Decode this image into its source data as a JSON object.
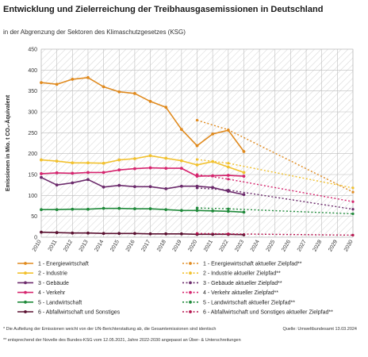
{
  "header": {
    "title": "Entwicklung und Zielerreichung der Treibhausgasemissionen in Deutschland",
    "subtitle": "in der Abgrenzung der Sektoren des Klimaschutzgesetzes (KSG)"
  },
  "footnotes": {
    "note1": "* Die Aufteilung der Emissionen weicht von der UN-Berichterstattung ab, die Gesamtemissionen sind identisch",
    "note2": "** entsprechend der Novelle des Bundes-KSG vom 12.05.2021, Jahre 2022-2030 angepasst an Über- & Unterschreitungen",
    "source": "Quelle: Umweltbundesamt 13.03.2024"
  },
  "chart_data": {
    "type": "line",
    "ylabel": "Emissionen in Mio. t CO₂-Äquivalent",
    "ylim": [
      0,
      450
    ],
    "yticks": [
      0,
      50,
      100,
      150,
      200,
      250,
      300,
      350,
      400,
      450
    ],
    "x": [
      2010,
      2011,
      2012,
      2013,
      2014,
      2015,
      2016,
      2017,
      2018,
      2019,
      2020,
      2021,
      2022,
      2023,
      2024,
      2025,
      2026,
      2027,
      2028,
      2029,
      2030
    ],
    "grid": true,
    "series": [
      {
        "name": "1 - Energiewirtschaft",
        "color": "#e08a1e",
        "style": "solid",
        "marker": true,
        "x": [
          2010,
          2011,
          2012,
          2013,
          2014,
          2015,
          2016,
          2017,
          2018,
          2019,
          2020,
          2021,
          2022,
          2023
        ],
        "values": [
          370,
          366,
          378,
          382,
          360,
          348,
          344,
          325,
          311,
          258,
          219,
          247,
          256,
          205
        ]
      },
      {
        "name": "2 - Industrie",
        "color": "#f2c12e",
        "style": "solid",
        "marker": true,
        "x": [
          2010,
          2011,
          2012,
          2013,
          2014,
          2015,
          2016,
          2017,
          2018,
          2019,
          2020,
          2021,
          2022,
          2023
        ],
        "values": [
          185,
          182,
          178,
          178,
          177,
          185,
          188,
          195,
          189,
          183,
          173,
          181,
          168,
          155
        ]
      },
      {
        "name": "3 - Gebäude",
        "color": "#6b2a6b",
        "style": "solid",
        "marker": true,
        "x": [
          2010,
          2011,
          2012,
          2013,
          2014,
          2015,
          2016,
          2017,
          2018,
          2019,
          2020,
          2021,
          2022,
          2023
        ],
        "values": [
          143,
          125,
          130,
          138,
          120,
          124,
          121,
          121,
          116,
          122,
          122,
          119,
          110,
          102
        ]
      },
      {
        "name": "4 - Verkehr",
        "color": "#d6246e",
        "style": "solid",
        "marker": true,
        "x": [
          2010,
          2011,
          2012,
          2013,
          2014,
          2015,
          2016,
          2017,
          2018,
          2019,
          2020,
          2021,
          2022,
          2023
        ],
        "values": [
          152,
          154,
          153,
          155,
          155,
          161,
          164,
          166,
          165,
          165,
          146,
          147,
          148,
          146
        ]
      },
      {
        "name": "5 - Landwirtschaft",
        "color": "#1f8a3a",
        "style": "solid",
        "marker": true,
        "x": [
          2010,
          2011,
          2012,
          2013,
          2014,
          2015,
          2016,
          2017,
          2018,
          2019,
          2020,
          2021,
          2022,
          2023
        ],
        "values": [
          66,
          66,
          67,
          67,
          69,
          69,
          68,
          68,
          66,
          64,
          64,
          63,
          62,
          60
        ]
      },
      {
        "name": "6 - Abfallwirtschaft und Sonstiges",
        "color": "#5a1030",
        "style": "solid",
        "marker": true,
        "x": [
          2010,
          2011,
          2012,
          2013,
          2014,
          2015,
          2016,
          2017,
          2018,
          2019,
          2020,
          2021,
          2022,
          2023
        ],
        "values": [
          12,
          11,
          10,
          10,
          9,
          9,
          9,
          8,
          8,
          8,
          7,
          7,
          7,
          6
        ]
      },
      {
        "name": "1 - Energiewirtschaft aktueller Zielpfad**",
        "color": "#e08a1e",
        "style": "dotted",
        "marker": true,
        "x": [
          2020,
          2022,
          2030
        ],
        "values": [
          280,
          257,
          108
        ]
      },
      {
        "name": "2 - Industrie aktueller Zielpfad**",
        "color": "#f2c12e",
        "style": "dotted",
        "marker": true,
        "x": [
          2020,
          2022,
          2030
        ],
        "values": [
          186,
          177,
          118
        ]
      },
      {
        "name": "3 - Gebäude aktueller Zielpfad**",
        "color": "#6b2a6b",
        "style": "dotted",
        "marker": true,
        "x": [
          2020,
          2022,
          2030
        ],
        "values": [
          118,
          113,
          67
        ]
      },
      {
        "name": "4 - Verkehr aktueller Zielpfad**",
        "color": "#d6246e",
        "style": "dotted",
        "marker": true,
        "x": [
          2020,
          2022,
          2030
        ],
        "values": [
          150,
          139,
          85
        ]
      },
      {
        "name": "5 - Landwirtschaft aktueller Zielpfad**",
        "color": "#1f8a3a",
        "style": "dotted",
        "marker": true,
        "x": [
          2020,
          2022,
          2030
        ],
        "values": [
          70,
          68,
          56
        ]
      },
      {
        "name": "6 - Abfallwirtschaft und Sonstiges aktueller Zielpfad**",
        "color": "#b5124d",
        "style": "dotted",
        "marker": true,
        "x": [
          2020,
          2022,
          2030
        ],
        "values": [
          9,
          8,
          5
        ]
      }
    ]
  }
}
